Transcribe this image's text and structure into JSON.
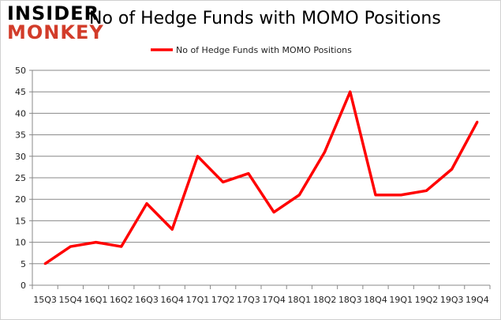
{
  "logo": {
    "line1": "INSIDER",
    "line2": "MONKEY"
  },
  "chart_data": {
    "type": "line",
    "title": "No of Hedge Funds with MOMO Positions",
    "xlabel": "",
    "ylabel": "",
    "categories": [
      "15Q3",
      "15Q4",
      "16Q1",
      "16Q2",
      "16Q3",
      "16Q4",
      "17Q1",
      "17Q2",
      "17Q3",
      "17Q4",
      "18Q1",
      "18Q2",
      "18Q3",
      "18Q4",
      "19Q1",
      "19Q2",
      "19Q3",
      "19Q4"
    ],
    "series": [
      {
        "name": "No of Hedge Funds with MOMO Positions",
        "color": "#ff0000",
        "values": [
          5,
          9,
          10,
          9,
          19,
          13,
          30,
          24,
          26,
          17,
          21,
          31,
          45,
          21,
          21,
          22,
          27,
          38
        ]
      }
    ],
    "ylim": [
      0,
      50
    ],
    "yticks": [
      0,
      5,
      10,
      15,
      20,
      25,
      30,
      35,
      40,
      45,
      50
    ],
    "grid": true,
    "legend": "top-center"
  }
}
